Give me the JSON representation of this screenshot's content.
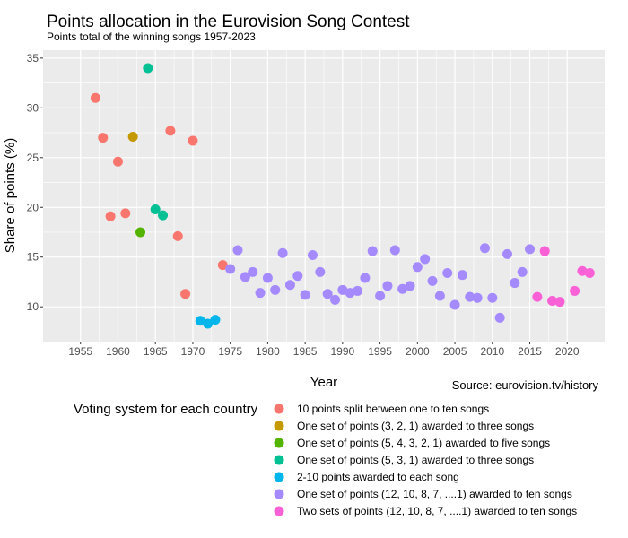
{
  "chart_data": {
    "type": "scatter",
    "title": "Points allocation in the Eurovision Song Contest",
    "subtitle": "Points total of the winning songs 1957-2023",
    "xlabel": "Year",
    "ylabel": "Share of points (%)",
    "caption": "Source: eurovision.tv/history",
    "xlim": [
      1950,
      2025
    ],
    "ylim": [
      6.5,
      35.8
    ],
    "x_ticks": [
      "1955",
      "1960",
      "1965",
      "1970",
      "1975",
      "1980",
      "1985",
      "1990",
      "1995",
      "2000",
      "2005",
      "2010",
      "2015",
      "2020"
    ],
    "y_ticks": [
      "10",
      "15",
      "20",
      "25",
      "30",
      "35"
    ],
    "grid": true,
    "legend_placement": "bottom",
    "legend_title": "Voting system for each country",
    "series": [
      {
        "name": "10 points split between one to ten songs",
        "color": "#F8766D",
        "points": [
          [
            1957,
            31.0
          ],
          [
            1958,
            27.0
          ],
          [
            1959,
            19.1
          ],
          [
            1960,
            24.6
          ],
          [
            1961,
            19.4
          ],
          [
            1967,
            27.7
          ],
          [
            1968,
            17.1
          ],
          [
            1969,
            11.3
          ],
          [
            1970,
            26.7
          ],
          [
            1974,
            14.2
          ]
        ]
      },
      {
        "name": "One set of points (3, 2, 1) awarded to three songs",
        "color": "#C49A00",
        "points": [
          [
            1962,
            27.1
          ]
        ]
      },
      {
        "name": "One set of points (5, 4, 3, 2, 1) awarded to five songs",
        "color": "#53B400",
        "points": [
          [
            1963,
            17.5
          ]
        ]
      },
      {
        "name": "One set of points (5, 3, 1) awarded to three songs",
        "color": "#00C094",
        "points": [
          [
            1964,
            34.0
          ],
          [
            1965,
            19.8
          ],
          [
            1966,
            19.2
          ]
        ]
      },
      {
        "name": "2-10 points awarded to each song",
        "color": "#00B6EB",
        "points": [
          [
            1971,
            8.6
          ],
          [
            1972,
            8.3
          ],
          [
            1973,
            8.7
          ]
        ]
      },
      {
        "name": "One set of points (12, 10, 8, 7, ....1) awarded to ten songs",
        "color": "#A58AFF",
        "points": [
          [
            1975,
            13.8
          ],
          [
            1976,
            15.7
          ],
          [
            1977,
            13.0
          ],
          [
            1978,
            13.5
          ],
          [
            1979,
            11.4
          ],
          [
            1980,
            12.9
          ],
          [
            1981,
            11.7
          ],
          [
            1982,
            15.4
          ],
          [
            1983,
            12.2
          ],
          [
            1984,
            13.1
          ],
          [
            1985,
            11.2
          ],
          [
            1986,
            15.2
          ],
          [
            1987,
            13.5
          ],
          [
            1988,
            11.3
          ],
          [
            1989,
            10.7
          ],
          [
            1990,
            11.7
          ],
          [
            1991,
            11.4
          ],
          [
            1992,
            11.6
          ],
          [
            1993,
            12.9
          ],
          [
            1994,
            15.6
          ],
          [
            1995,
            11.1
          ],
          [
            1996,
            12.1
          ],
          [
            1997,
            15.7
          ],
          [
            1998,
            11.8
          ],
          [
            1999,
            12.1
          ],
          [
            2000,
            14.0
          ],
          [
            2001,
            14.8
          ],
          [
            2002,
            12.6
          ],
          [
            2003,
            11.1
          ],
          [
            2004,
            13.4
          ],
          [
            2005,
            10.2
          ],
          [
            2006,
            13.2
          ],
          [
            2007,
            11.0
          ],
          [
            2008,
            10.9
          ],
          [
            2009,
            15.9
          ],
          [
            2010,
            10.9
          ],
          [
            2011,
            8.9
          ],
          [
            2012,
            15.3
          ],
          [
            2013,
            12.4
          ],
          [
            2014,
            13.5
          ],
          [
            2015,
            15.8
          ]
        ]
      },
      {
        "name": "Two sets of points (12, 10, 8, 7, ....1) awarded to ten songs",
        "color": "#FB61D7",
        "points": [
          [
            2016,
            11.0
          ],
          [
            2017,
            15.6
          ],
          [
            2018,
            10.6
          ],
          [
            2019,
            10.5
          ],
          [
            2021,
            11.6
          ],
          [
            2022,
            13.6
          ],
          [
            2023,
            13.4
          ]
        ]
      }
    ]
  }
}
